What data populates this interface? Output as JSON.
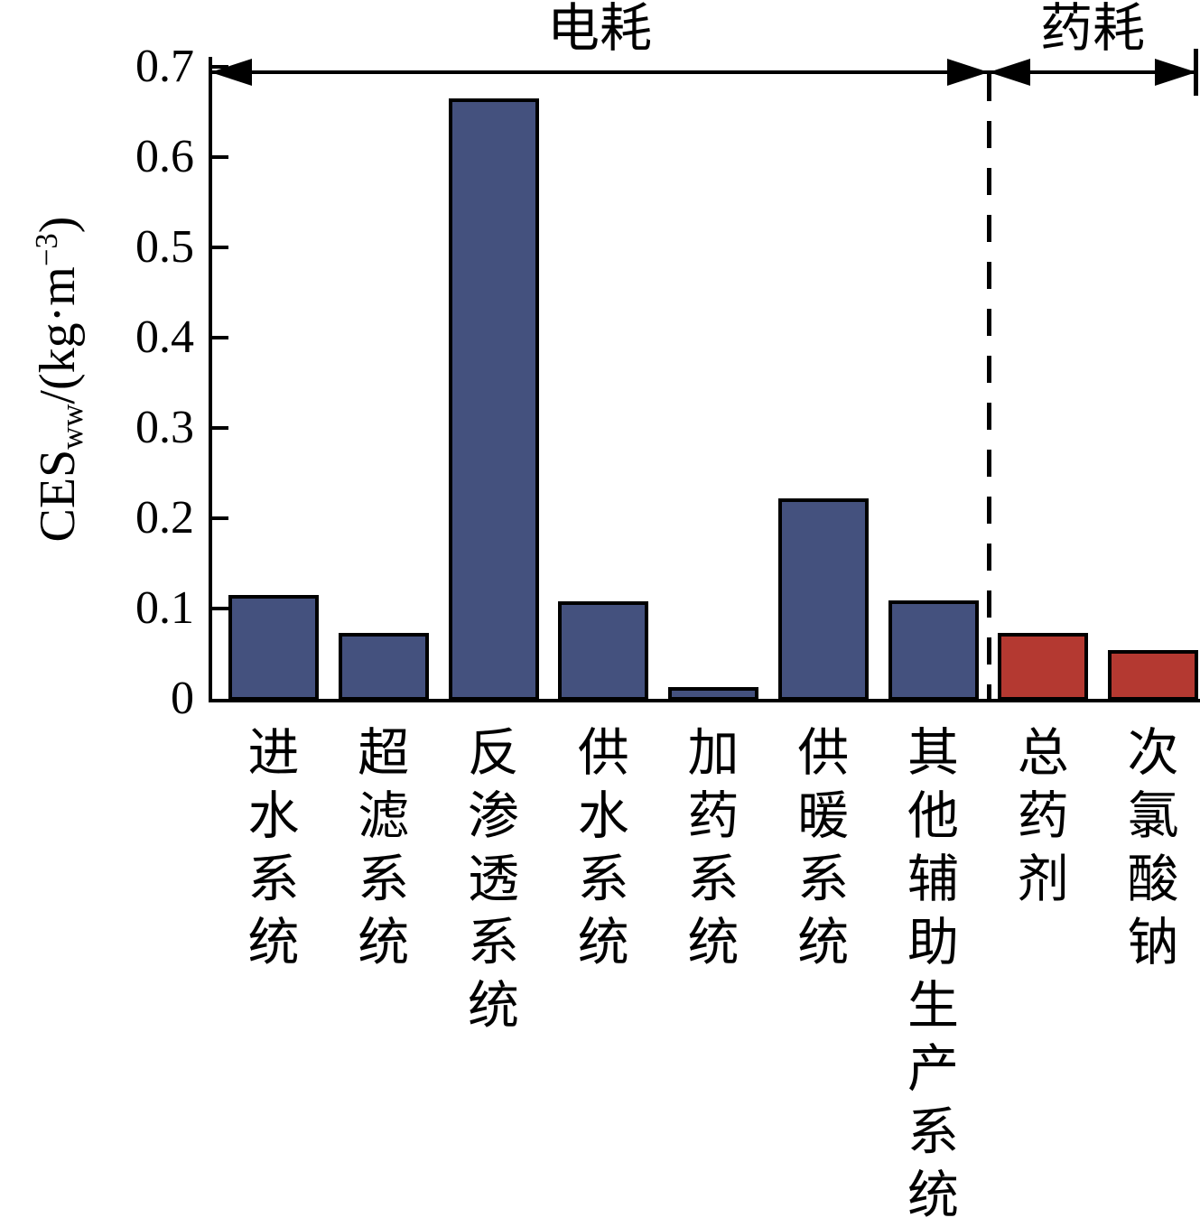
{
  "chart_data": {
    "type": "bar",
    "categories": [
      "进水系统",
      "超滤系统",
      "反渗透系统",
      "供水系统",
      "加药系统",
      "供暖系统",
      "其他辅助生产系统",
      "总药剂",
      "次氯酸钠"
    ],
    "values": [
      0.115,
      0.073,
      0.665,
      0.108,
      0.013,
      0.222,
      0.109,
      0.073,
      0.054
    ],
    "bar_colors": [
      "#44517E",
      "#44517E",
      "#44517E",
      "#44517E",
      "#44517E",
      "#44517E",
      "#44517E",
      "#B43931",
      "#B43931"
    ],
    "ylabel": {
      "main": "CES",
      "sub": "ww",
      "mid": "/(kg·m",
      "sup": "−3",
      "end": ")"
    },
    "ylim": [
      0,
      0.7
    ],
    "ytick_step": 0.1,
    "ytick_labels": [
      "0",
      "0.1",
      "0.2",
      "0.3",
      "0.4",
      "0.5",
      "0.6",
      "0.7"
    ],
    "xlabel": "",
    "title": "",
    "grid": false,
    "legend": "none",
    "group_annotations": [
      {
        "label": "电耗",
        "from_index": 0,
        "to_index": 6
      },
      {
        "label": "药耗",
        "from_index": 7,
        "to_index": 8
      }
    ],
    "separator": {
      "style": "dashed",
      "after_index": 6
    },
    "colors": {
      "electricity_bar": "#44517E",
      "chemical_bar": "#B43931",
      "axis": "#000000"
    }
  }
}
